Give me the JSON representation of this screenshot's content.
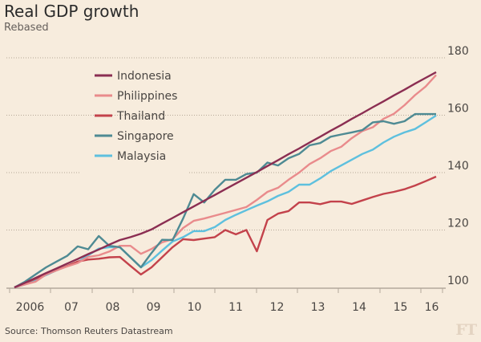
{
  "chart_data": {
    "type": "line",
    "title": "Real GDP growth",
    "subtitle": "Rebased",
    "source": "Source: Thomson Reuters Datastream",
    "logo": "FT",
    "xlabel": "",
    "ylabel": "",
    "x_unit": "quarter index from 2006 Q1",
    "x_tick_labels": [
      "2006",
      "07",
      "08",
      "09",
      "10",
      "11",
      "12",
      "13",
      "14",
      "15",
      "16"
    ],
    "y_ticks": [
      100,
      120,
      140,
      160,
      180
    ],
    "ylim": [
      100,
      180
    ],
    "grid": true,
    "legend_position": "top-left",
    "series": [
      {
        "name": "Indonesia",
        "color": "#8b2e52",
        "values": [
          100,
          101.6,
          103.3,
          105,
          106.6,
          108.3,
          109.9,
          111.6,
          113.2,
          114.9,
          116.5,
          117.5,
          118.7,
          120.2,
          122.2,
          124.2,
          126.2,
          128.2,
          130.2,
          132.2,
          134.2,
          136.2,
          138.2,
          140.2,
          142.3,
          144.3,
          146.4,
          148.4,
          150.5,
          152.5,
          154.6,
          156.6,
          158.7,
          160.7,
          162.8,
          164.8,
          166.9,
          168.9,
          171,
          173,
          175
        ]
      },
      {
        "name": "Philippines",
        "color": "#e98b8c",
        "values": [
          100,
          101,
          102,
          104.5,
          106,
          107.3,
          108.5,
          110.6,
          111.2,
          112.5,
          114.5,
          114.5,
          111.7,
          113.4,
          115.7,
          116.8,
          120.7,
          123.2,
          124,
          125,
          126,
          127,
          128,
          130.5,
          133.3,
          134.7,
          137.5,
          140,
          143,
          145,
          147.5,
          149,
          152,
          154.5,
          155.8,
          158.7,
          160.5,
          163.5,
          167,
          170,
          174
        ]
      },
      {
        "name": "Thailand",
        "color": "#c3424b",
        "values": [
          100,
          101.5,
          103,
          104.5,
          106,
          107.5,
          109,
          109.7,
          110,
          110.5,
          110.6,
          107.5,
          104.5,
          107,
          110.5,
          114,
          116.8,
          116.5,
          117,
          117.5,
          120,
          118.5,
          120,
          112.6,
          123.5,
          125.7,
          126.6,
          129.6,
          129.6,
          129,
          129.9,
          129.9,
          129.1,
          130.3,
          131.5,
          132.6,
          133.3,
          134.2,
          135.5,
          137,
          138.6
        ]
      },
      {
        "name": "Singapore",
        "color": "#4e8a93",
        "values": [
          100,
          102,
          104.5,
          107,
          109,
          111,
          114.3,
          113.3,
          117.9,
          114.5,
          114,
          110.5,
          107,
          112,
          116.6,
          116.5,
          124,
          132.5,
          129.6,
          134,
          137.5,
          137.5,
          139.5,
          140,
          143.5,
          142.5,
          145,
          146.5,
          149.5,
          150.3,
          152.5,
          153.3,
          154,
          154.8,
          157.5,
          157.9,
          157,
          157.9,
          160.4,
          160.4,
          160.4
        ]
      },
      {
        "name": "Malaysia",
        "color": "#5ec0de",
        "values": [
          100,
          101,
          102.5,
          104.3,
          106,
          107.5,
          108.7,
          111.2,
          113.5,
          114,
          114,
          110.5,
          107,
          109.5,
          112.8,
          116,
          117.5,
          119.6,
          119.6,
          121,
          123.5,
          125.3,
          126.9,
          128.5,
          130,
          131.9,
          133.3,
          135.8,
          135.8,
          138,
          140.5,
          142.5,
          144.5,
          146.5,
          148,
          150.5,
          152.5,
          154,
          155.2,
          157.5,
          159.9
        ]
      }
    ]
  }
}
